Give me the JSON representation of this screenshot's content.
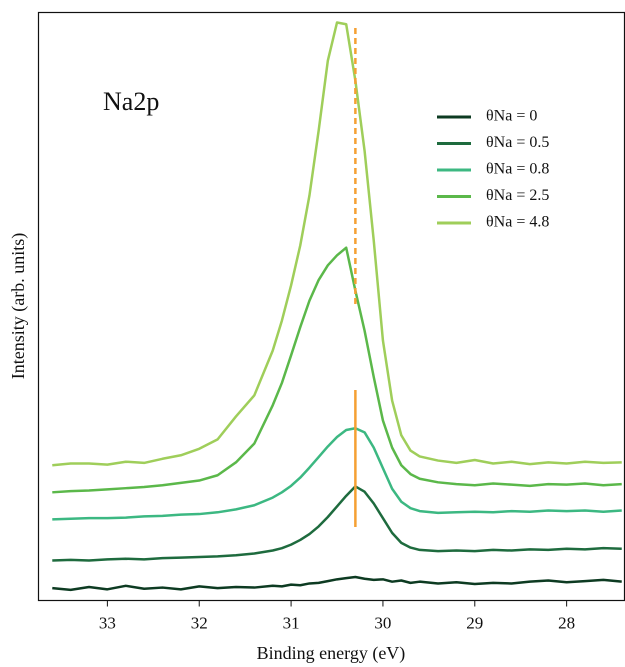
{
  "chart_data": {
    "type": "line",
    "xlabel": "Binding energy (eV)",
    "ylabel": "Intensity (arb. units)",
    "annotation": "Na2p",
    "x": [
      33.6,
      33.4,
      33.2,
      33.0,
      32.8,
      32.6,
      32.4,
      32.2,
      32.0,
      31.8,
      31.6,
      31.4,
      31.2,
      31.1,
      31.0,
      30.9,
      30.8,
      30.7,
      30.6,
      30.5,
      30.4,
      30.3,
      30.2,
      30.1,
      30.0,
      29.9,
      29.8,
      29.7,
      29.6,
      29.4,
      29.2,
      29.0,
      28.8,
      28.6,
      28.4,
      28.2,
      28.0,
      27.8,
      27.6,
      27.4
    ],
    "series": [
      {
        "name": "θNa = 0",
        "color": "#0d3b22",
        "values": [
          2.1,
          1.8,
          2.3,
          1.9,
          2.5,
          2.0,
          2.2,
          1.9,
          2.4,
          2.1,
          2.3,
          2.2,
          2.5,
          2.4,
          2.7,
          2.6,
          2.9,
          3.0,
          3.3,
          3.6,
          3.8,
          4.0,
          3.7,
          3.5,
          3.6,
          3.2,
          3.4,
          3.0,
          3.2,
          2.9,
          3.1,
          2.8,
          3.0,
          2.9,
          3.2,
          3.4,
          3.1,
          3.3,
          3.5,
          3.2
        ]
      },
      {
        "name": "θNa = 0.5",
        "color": "#1e6b3e",
        "values": [
          6.8,
          6.9,
          6.8,
          7.0,
          7.1,
          7.0,
          7.2,
          7.3,
          7.4,
          7.5,
          7.7,
          8.0,
          8.5,
          8.9,
          9.5,
          10.3,
          11.3,
          12.6,
          14.2,
          16.0,
          17.8,
          19.4,
          18.5,
          16.5,
          14.0,
          11.5,
          9.8,
          9.0,
          8.6,
          8.4,
          8.5,
          8.4,
          8.6,
          8.5,
          8.7,
          8.6,
          8.8,
          8.7,
          8.9,
          8.8
        ]
      },
      {
        "name": "θNa = 0.8",
        "color": "#3cb882",
        "values": [
          13.8,
          13.9,
          14.0,
          14.0,
          14.1,
          14.3,
          14.4,
          14.6,
          14.7,
          15.0,
          15.5,
          16.2,
          17.5,
          18.4,
          19.5,
          20.9,
          22.6,
          24.4,
          26.2,
          27.8,
          29.0,
          29.3,
          28.6,
          26.0,
          22.5,
          19.0,
          16.8,
          15.7,
          15.2,
          14.9,
          15.0,
          15.1,
          15.0,
          15.2,
          15.1,
          15.3,
          15.2,
          15.3,
          15.1,
          15.3
        ]
      },
      {
        "name": "θNa = 2.5",
        "color": "#5bb84a",
        "values": [
          18.4,
          18.6,
          18.7,
          18.9,
          19.1,
          19.3,
          19.6,
          20.0,
          20.4,
          21.3,
          23.5,
          26.7,
          33.2,
          37.0,
          41.7,
          46.5,
          51.0,
          54.5,
          57.0,
          58.7,
          60.0,
          52.7,
          45.9,
          38.0,
          30.6,
          26.0,
          23.0,
          21.5,
          20.7,
          20.1,
          19.8,
          19.6,
          19.9,
          19.7,
          19.5,
          19.8,
          19.7,
          19.9,
          19.6,
          19.8
        ]
      },
      {
        "name": "θNa = 4.8",
        "color": "#9fce5a",
        "values": [
          23.0,
          23.3,
          23.3,
          23.1,
          23.6,
          23.4,
          24.1,
          24.7,
          25.8,
          27.4,
          31.3,
          34.9,
          42.5,
          47.6,
          53.6,
          60.4,
          68.9,
          79.9,
          91.8,
          98.3,
          98.0,
          88.4,
          76.5,
          61.2,
          44.2,
          34.0,
          28.1,
          25.5,
          24.5,
          23.8,
          23.4,
          23.9,
          23.3,
          23.6,
          23.2,
          23.5,
          23.3,
          23.6,
          23.4,
          23.5
        ]
      }
    ],
    "reference_line": {
      "x": 30.3,
      "color": "#f5a033"
    },
    "xlim": [
      33.75,
      27.37
    ],
    "xticks": [
      33,
      32,
      31,
      30,
      29,
      28
    ],
    "ylim": [
      0,
      100
    ],
    "legend": "upper right"
  }
}
